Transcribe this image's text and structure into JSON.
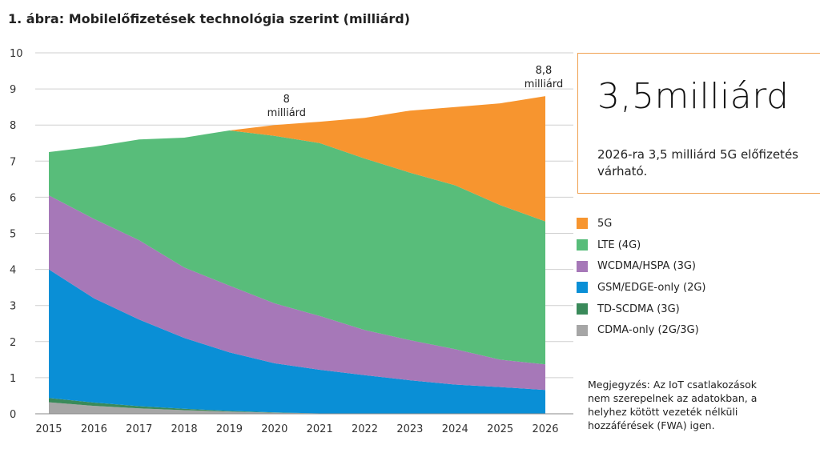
{
  "chart_data": {
    "type": "area",
    "stacked": true,
    "title": "1. ábra: Mobilelőfizetések technológia szerint (milliárd)",
    "xlabel": "",
    "ylabel": "",
    "ylim": [
      0,
      10
    ],
    "yticks": [
      0,
      1,
      2,
      3,
      4,
      5,
      6,
      7,
      8,
      9,
      10
    ],
    "grid": true,
    "categories": [
      "2015",
      "2016",
      "2017",
      "2018",
      "2019",
      "2020",
      "2021",
      "2022",
      "2023",
      "2024",
      "2025",
      "2026"
    ],
    "series": [
      {
        "name": "CDMA-only (2G/3G)",
        "color": "#a6a6a6",
        "values": [
          0.32,
          0.22,
          0.15,
          0.1,
          0.06,
          0.03,
          0.01,
          0,
          0,
          0,
          0,
          0
        ]
      },
      {
        "name": "TD-SCDMA (3G)",
        "color": "#3a8a5a",
        "values": [
          0.12,
          0.09,
          0.06,
          0.04,
          0.02,
          0.01,
          0,
          0,
          0,
          0,
          0,
          0
        ]
      },
      {
        "name": "GSM/EDGE-only (2G)",
        "color": "#0a8fd6",
        "values": [
          3.56,
          2.89,
          2.4,
          1.96,
          1.62,
          1.36,
          1.21,
          1.07,
          0.93,
          0.81,
          0.74,
          0.66
        ]
      },
      {
        "name": "WCDMA/HSPA (3G)",
        "color": "#a678b8",
        "values": [
          2.05,
          2.2,
          2.2,
          1.95,
          1.85,
          1.66,
          1.49,
          1.25,
          1.11,
          0.98,
          0.76,
          0.71
        ]
      },
      {
        "name": "LTE (4G)",
        "color": "#58bd7a",
        "values": [
          1.2,
          2.0,
          2.79,
          3.6,
          4.3,
          4.64,
          4.79,
          4.75,
          4.64,
          4.54,
          4.28,
          3.96
        ]
      },
      {
        "name": "5G",
        "color": "#f7952f",
        "values": [
          0,
          0,
          0,
          0,
          0,
          0.3,
          0.59,
          1.13,
          1.72,
          2.17,
          2.82,
          3.47
        ]
      }
    ],
    "annotations": [
      {
        "text_line1": "8",
        "text_line2": "milliárd",
        "x": "2020",
        "y": 8.0
      },
      {
        "text_line1": "8,8",
        "text_line2": "milliárd",
        "x": "2026",
        "y": 8.8
      }
    ]
  },
  "callout": {
    "big": "3,5milliárd",
    "text": "2026-ra 3,5 milliárd 5G előfizetés várható.",
    "border_color": "#f0a050"
  },
  "legend": {
    "items": [
      {
        "label": "5G",
        "color": "#f7952f"
      },
      {
        "label": "LTE (4G)",
        "color": "#58bd7a"
      },
      {
        "label": "WCDMA/HSPA (3G)",
        "color": "#a678b8"
      },
      {
        "label": "GSM/EDGE-only (2G)",
        "color": "#0a8fd6"
      },
      {
        "label": "TD-SCDMA (3G)",
        "color": "#3a8a5a"
      },
      {
        "label": "CDMA-only (2G/3G)",
        "color": "#a6a6a6"
      }
    ]
  },
  "note": "Megjegyzés: Az IoT csatlakozások nem szerepelnek az adatokban, a helyhez kötött vezeték nélküli hozzáférések (FWA) igen."
}
